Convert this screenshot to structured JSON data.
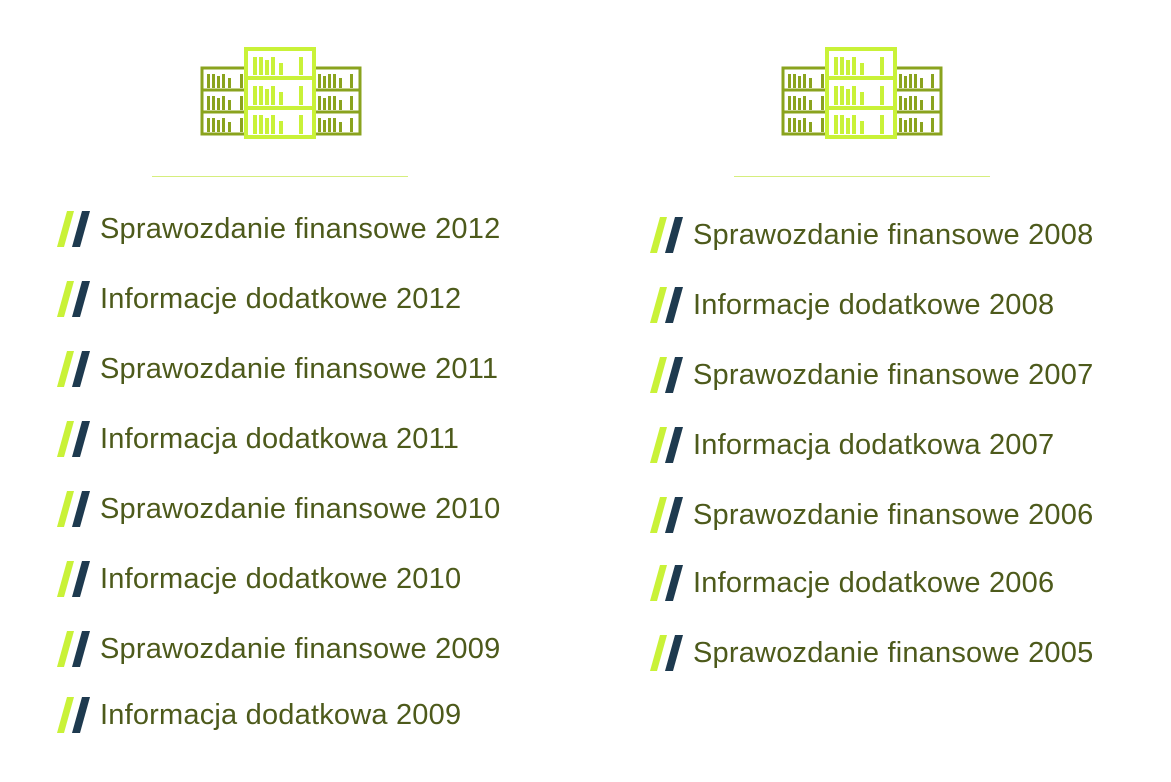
{
  "colors": {
    "text": "#4d5a1b",
    "accent_lime": "#c9f238",
    "accent_navy": "#1e3a4f",
    "shelf_olive": "#8aa31e",
    "shelf_lime": "#c9f238",
    "divider": "#d6ee7e"
  },
  "icons": {
    "header": "bookshelf-icon",
    "bullet": "double-slash-icon"
  },
  "columns": [
    {
      "items": [
        {
          "label": "Sprawozdanie finansowe 2012"
        },
        {
          "label": "Informacje dodatkowe 2012"
        },
        {
          "label": "Sprawozdanie finansowe 2011"
        },
        {
          "label": "Informacja dodatkowa 2011"
        },
        {
          "label": "Sprawozdanie finansowe 2010"
        },
        {
          "label": "Informacje dodatkowe 2010"
        },
        {
          "label": "Sprawozdanie finansowe 2009"
        },
        {
          "label": "Informacja dodatkowa 2009"
        }
      ]
    },
    {
      "items": [
        {
          "label": "Sprawozdanie finansowe 2008"
        },
        {
          "label": "Informacje dodatkowe 2008"
        },
        {
          "label": "Sprawozdanie finansowe 2007"
        },
        {
          "label": "Informacja dodatkowa 2007"
        },
        {
          "label": "Sprawozdanie finansowe 2006"
        },
        {
          "label": "Informacje dodatkowe 2006"
        },
        {
          "label": "Sprawozdanie finansowe 2005"
        }
      ]
    }
  ]
}
